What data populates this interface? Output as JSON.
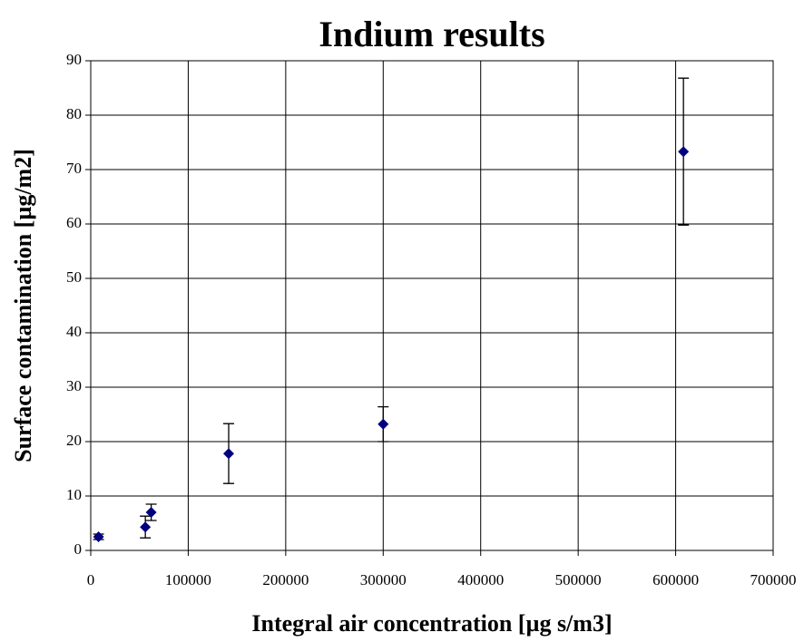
{
  "chart_data": {
    "type": "scatter",
    "title": "Indium results",
    "x_label": "Integral air concentration [µg s/m3]",
    "y_label": "Surface contamination [µg/m2]",
    "series": [
      {
        "color": "#000080",
        "x": [
          8000,
          56000,
          62000,
          141500,
          300000,
          608000
        ],
        "values": [
          2.5,
          4.3,
          7,
          17.8,
          23.2,
          73.3
        ],
        "errors": [
          0.5,
          2,
          1.5,
          5.5,
          3.2,
          13.5
        ]
      }
    ],
    "xlim": [
      0,
      700000
    ],
    "xticks": [
      0,
      100000,
      200000,
      300000,
      400000,
      500000,
      600000,
      700000
    ],
    "ylim": [
      0,
      90
    ],
    "yticks": [
      0,
      10,
      20,
      30,
      40,
      50,
      60,
      70,
      80,
      90
    ],
    "grid": true
  }
}
